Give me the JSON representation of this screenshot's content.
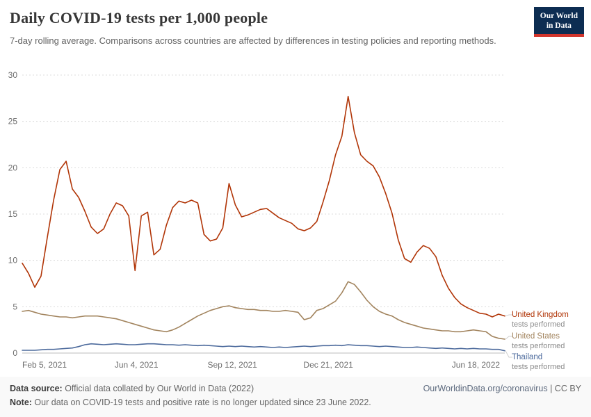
{
  "header": {
    "title": "Daily COVID-19 tests per 1,000 people",
    "subtitle": "7-day rolling average. Comparisons across countries are affected by differences in testing policies and reporting methods.",
    "logo": {
      "line1": "Our World",
      "line2": "in Data",
      "bg_color": "#0d2d52",
      "accent_color": "#d2352c"
    }
  },
  "footer": {
    "data_source_label": "Data source:",
    "data_source_text": " Official data collated by Our World in Data (2022)",
    "note_label": "Note:",
    "note_text": " Our data on COVID-19 tests and positive rate is no longer updated since 23 June 2022.",
    "link_text": "OurWorldinData.org/coronavirus",
    "separator": " | ",
    "license_text": "CC BY"
  },
  "chart_data": {
    "type": "line",
    "title": "Daily COVID-19 tests per 1,000 people",
    "xlabel": "",
    "ylabel": "",
    "ylim": [
      0,
      30
    ],
    "yticks": [
      0,
      5,
      10,
      15,
      20,
      25,
      30
    ],
    "grid": true,
    "legend_position": "right",
    "x_total_days": 503,
    "xticks": [
      {
        "label": "Feb 5, 2021",
        "day": 0,
        "anchor": "start"
      },
      {
        "label": "Jun 4, 2021",
        "day": 119,
        "anchor": "middle"
      },
      {
        "label": "Sep 12, 2021",
        "day": 219,
        "anchor": "middle"
      },
      {
        "label": "Dec 21, 2021",
        "day": 319,
        "anchor": "middle"
      },
      {
        "label": "Jun 18, 2022",
        "day": 498,
        "anchor": "end"
      }
    ],
    "series": [
      {
        "name": "United Kingdom",
        "sublabel": "tests performed",
        "color": "#b13507",
        "values": [
          9.7,
          8.6,
          7.1,
          8.3,
          12.5,
          16.5,
          19.8,
          20.7,
          17.7,
          16.8,
          15.3,
          13.6,
          12.9,
          13.4,
          15.0,
          16.2,
          15.9,
          14.8,
          8.9,
          14.8,
          15.2,
          10.6,
          11.2,
          13.8,
          15.7,
          16.4,
          16.2,
          16.5,
          16.2,
          12.8,
          12.1,
          12.3,
          13.5,
          18.3,
          16.0,
          14.7,
          14.9,
          15.2,
          15.5,
          15.6,
          15.1,
          14.6,
          14.3,
          14.0,
          13.4,
          13.2,
          13.5,
          14.2,
          16.3,
          18.6,
          21.4,
          23.4,
          27.7,
          23.8,
          21.4,
          20.7,
          20.2,
          19.0,
          17.2,
          15.1,
          12.2,
          10.2,
          9.8,
          10.9,
          11.6,
          11.3,
          10.4,
          8.4,
          7.0,
          6.0,
          5.3,
          4.9,
          4.6,
          4.3,
          4.2,
          3.9,
          4.2,
          4.0
        ]
      },
      {
        "name": "United States",
        "sublabel": "tests performed",
        "color": "#a2845e",
        "values": [
          4.5,
          4.6,
          4.4,
          4.2,
          4.1,
          4.0,
          3.9,
          3.9,
          3.8,
          3.9,
          4.0,
          4.0,
          4.0,
          3.9,
          3.8,
          3.7,
          3.5,
          3.3,
          3.1,
          2.9,
          2.7,
          2.5,
          2.4,
          2.3,
          2.5,
          2.8,
          3.2,
          3.6,
          4.0,
          4.3,
          4.6,
          4.8,
          5.0,
          5.1,
          4.9,
          4.8,
          4.7,
          4.7,
          4.6,
          4.6,
          4.5,
          4.5,
          4.6,
          4.5,
          4.4,
          3.6,
          3.8,
          4.6,
          4.8,
          5.2,
          5.6,
          6.5,
          7.7,
          7.4,
          6.6,
          5.7,
          5.0,
          4.5,
          4.2,
          4.0,
          3.6,
          3.3,
          3.1,
          2.9,
          2.7,
          2.6,
          2.5,
          2.4,
          2.4,
          2.3,
          2.3,
          2.4,
          2.5,
          2.4,
          2.3,
          1.8,
          1.6,
          1.5
        ]
      },
      {
        "name": "Thailand",
        "sublabel": "tests performed",
        "color": "#4c6a9c",
        "values": [
          0.3,
          0.3,
          0.3,
          0.35,
          0.4,
          0.4,
          0.45,
          0.5,
          0.55,
          0.7,
          0.9,
          1.0,
          0.95,
          0.9,
          0.95,
          1.0,
          0.95,
          0.9,
          0.9,
          0.95,
          1.0,
          1.0,
          0.95,
          0.9,
          0.9,
          0.85,
          0.9,
          0.85,
          0.8,
          0.85,
          0.8,
          0.75,
          0.7,
          0.75,
          0.7,
          0.75,
          0.7,
          0.65,
          0.7,
          0.65,
          0.6,
          0.65,
          0.6,
          0.65,
          0.7,
          0.75,
          0.7,
          0.75,
          0.8,
          0.8,
          0.85,
          0.8,
          0.9,
          0.85,
          0.8,
          0.8,
          0.75,
          0.7,
          0.75,
          0.7,
          0.65,
          0.6,
          0.6,
          0.65,
          0.6,
          0.55,
          0.5,
          0.55,
          0.5,
          0.45,
          0.5,
          0.45,
          0.5,
          0.45,
          0.45,
          0.4,
          0.4,
          0.25
        ]
      }
    ]
  }
}
